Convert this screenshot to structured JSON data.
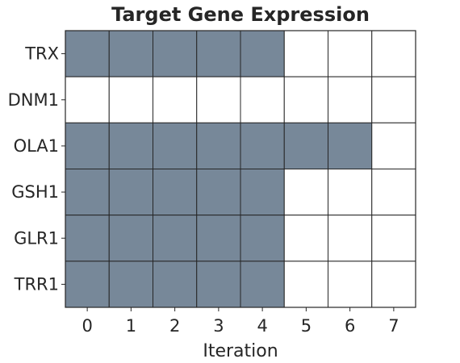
{
  "chart_data": {
    "type": "heatmap",
    "title": "Target Gene Expression",
    "xlabel": "Iteration",
    "ylabel": "",
    "x": [
      "0",
      "1",
      "2",
      "3",
      "4",
      "5",
      "6",
      "7"
    ],
    "genes": [
      "TRX",
      "DNM1",
      "OLA1",
      "GSH1",
      "GLR1",
      "TRR1"
    ],
    "values": [
      [
        1,
        1,
        1,
        1,
        1,
        0,
        0,
        0
      ],
      [
        0,
        0,
        0,
        0,
        0,
        0,
        0,
        0
      ],
      [
        1,
        1,
        1,
        1,
        1,
        1,
        1,
        0
      ],
      [
        1,
        1,
        1,
        1,
        1,
        0,
        0,
        0
      ],
      [
        1,
        1,
        1,
        1,
        1,
        0,
        0,
        0
      ],
      [
        1,
        1,
        1,
        1,
        1,
        0,
        0,
        0
      ]
    ],
    "colors": {
      "on": "#778899",
      "off": "#ffffff",
      "grid": "#262626"
    },
    "legend": "none",
    "grid": true
  }
}
